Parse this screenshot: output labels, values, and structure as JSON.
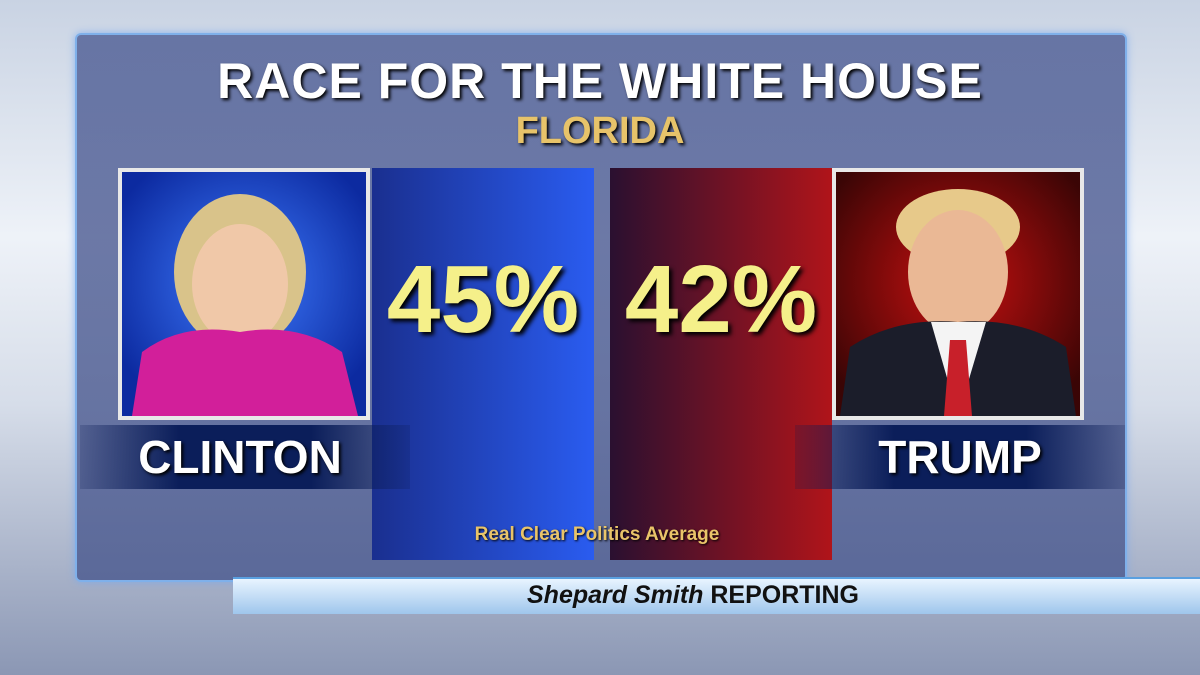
{
  "header": {
    "title": "RACE FOR THE WHITE HOUSE",
    "subtitle": "FLORIDA"
  },
  "candidates": [
    {
      "name": "CLINTON",
      "value": "45%"
    },
    {
      "name": "TRUMP",
      "value": "42%"
    }
  ],
  "source": "Real Clear Politics Average",
  "show": {
    "host": "Shepard Smith",
    "suffix": "REPORTING"
  }
}
